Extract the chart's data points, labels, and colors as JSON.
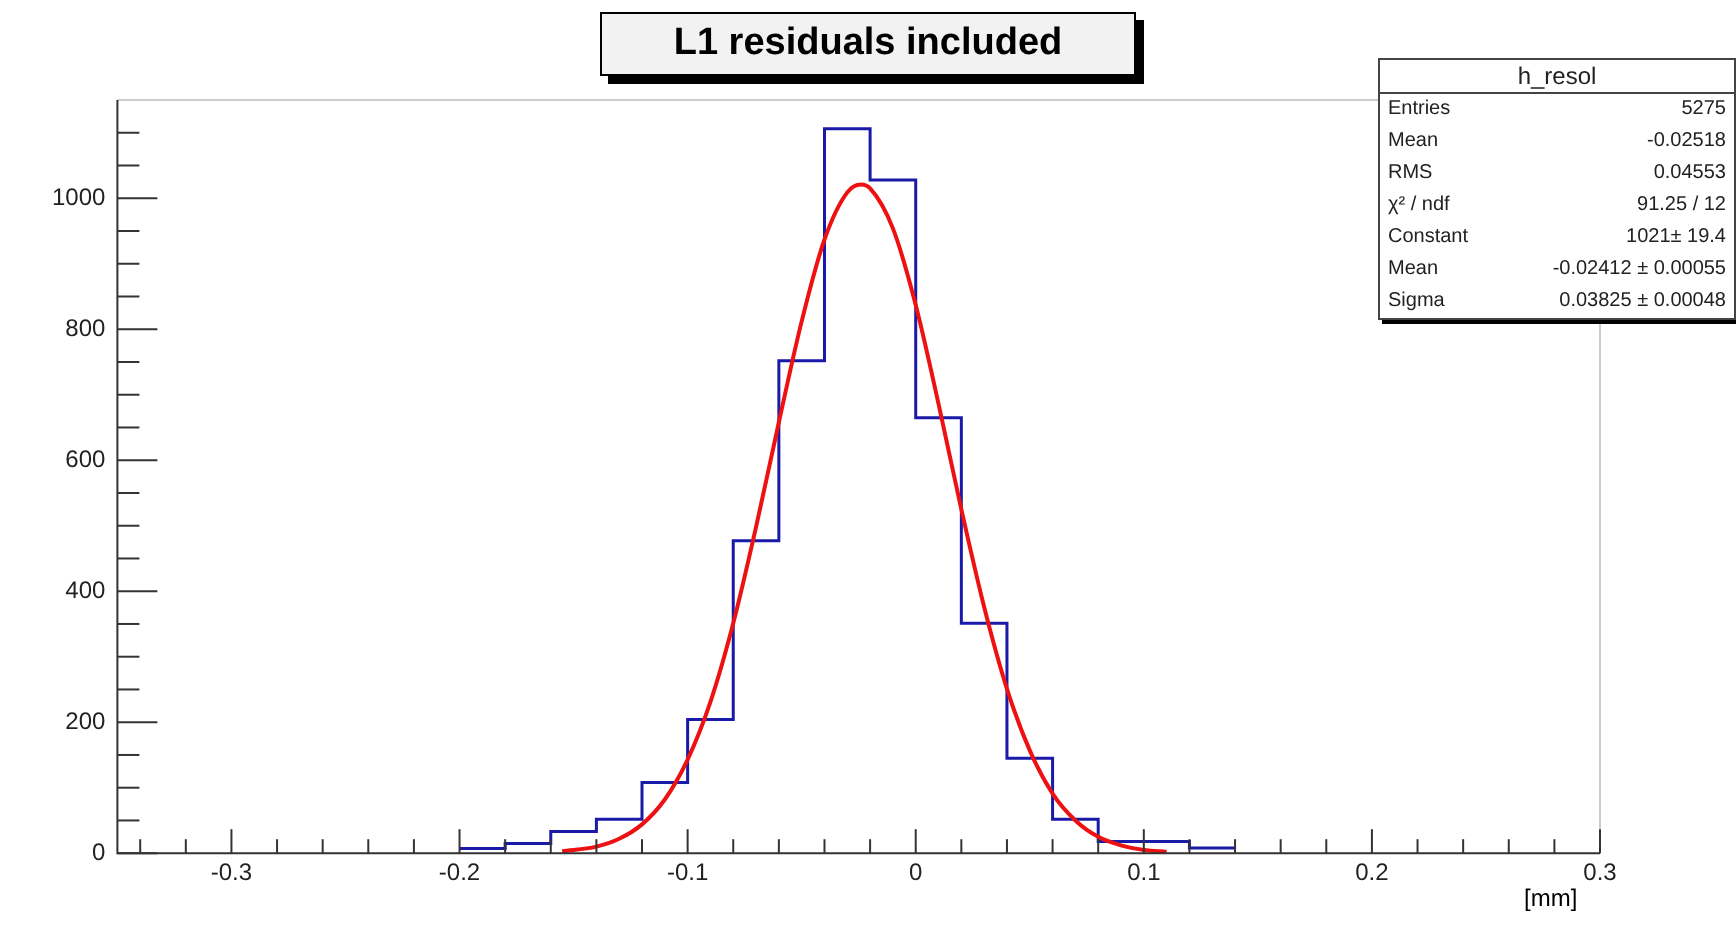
{
  "chart_data": {
    "type": "histogram",
    "title": "L1 residuals included",
    "xlabel": "[mm]",
    "xlim": [
      -0.35,
      0.3
    ],
    "xticks": [
      {
        "value": -0.34,
        "label": null
      },
      {
        "value": -0.32,
        "label": null
      },
      -0.3,
      {
        "value": -0.28,
        "label": null
      },
      {
        "value": -0.26,
        "label": null
      },
      {
        "value": -0.24,
        "label": null
      },
      {
        "value": -0.22,
        "label": null
      },
      -0.2,
      {
        "value": -0.18,
        "label": null
      },
      {
        "value": -0.16,
        "label": null
      },
      {
        "value": -0.14,
        "label": null
      },
      {
        "value": -0.12,
        "label": null
      },
      -0.1,
      {
        "value": -0.08,
        "label": null
      },
      {
        "value": -0.06,
        "label": null
      },
      {
        "value": -0.04,
        "label": null
      },
      {
        "value": -0.02,
        "label": null
      },
      0,
      {
        "value": 0.02,
        "label": null
      },
      {
        "value": 0.04,
        "label": null
      },
      {
        "value": 0.06,
        "label": null
      },
      {
        "value": 0.08,
        "label": null
      },
      0.1,
      {
        "value": 0.12,
        "label": null
      },
      {
        "value": 0.14,
        "label": null
      },
      {
        "value": 0.16,
        "label": null
      },
      {
        "value": 0.18,
        "label": null
      },
      0.2,
      {
        "value": 0.22,
        "label": null
      },
      {
        "value": 0.24,
        "label": null
      },
      {
        "value": 0.26,
        "label": null
      },
      {
        "value": 0.28,
        "label": null
      },
      0.3
    ],
    "ylim": [
      0,
      1150
    ],
    "yticks": [
      0,
      {
        "value": 50,
        "label": null
      },
      {
        "value": 100,
        "label": null
      },
      {
        "value": 150,
        "label": null
      },
      200,
      {
        "value": 250,
        "label": null
      },
      {
        "value": 300,
        "label": null
      },
      {
        "value": 350,
        "label": null
      },
      400,
      {
        "value": 450,
        "label": null
      },
      {
        "value": 500,
        "label": null
      },
      {
        "value": 550,
        "label": null
      },
      600,
      {
        "value": 650,
        "label": null
      },
      {
        "value": 700,
        "label": null
      },
      {
        "value": 750,
        "label": null
      },
      800,
      {
        "value": 850,
        "label": null
      },
      {
        "value": 900,
        "label": null
      },
      {
        "value": 950,
        "label": null
      },
      1000,
      {
        "value": 1050,
        "label": null
      },
      {
        "value": 1100,
        "label": null
      }
    ],
    "grid": false,
    "legend": false,
    "series": [
      {
        "color": "#1a1aa8",
        "bins": [
          -0.2,
          -0.18,
          -0.16,
          -0.14,
          -0.12,
          -0.1,
          -0.08,
          -0.06,
          -0.04,
          -0.02,
          0,
          0.02,
          0.04,
          0.06,
          0.08,
          0.1,
          0.12,
          0.14
        ],
        "values": [
          7,
          15,
          33,
          52,
          108,
          204,
          477,
          752,
          1106,
          1028,
          665,
          351,
          145,
          52,
          18,
          18,
          8
        ]
      },
      {
        "type": "line",
        "color": "#ee1111",
        "x": [
          -0.155,
          -0.14,
          -0.13,
          -0.12,
          -0.11,
          -0.1,
          -0.09,
          -0.08,
          -0.07,
          -0.06,
          -0.05,
          -0.04,
          -0.03,
          -0.024,
          -0.02,
          -0.01,
          0,
          0.01,
          0.02,
          0.03,
          0.04,
          0.05,
          0.06,
          0.07,
          0.08,
          0.09,
          0.1,
          0.11
        ],
        "values": [
          3,
          10,
          22,
          44,
          82,
          143,
          231,
          351,
          498,
          658,
          812,
          937,
          1009,
          1021,
          1015,
          954,
          837,
          686,
          525,
          376,
          251,
          157,
          91,
          50,
          25,
          12,
          5,
          2
        ]
      }
    ],
    "annotations": [
      "h_resol",
      "Entries\t5275",
      "Mean\t-0.02518",
      "RMS\t0.04553",
      "χ² / ndf\t91.25 / 12",
      "Constant\t1021± 19.4",
      "Mean\t-0.02412 ± 0.00055",
      "Sigma\t0.03825 ± 0.00048"
    ]
  }
}
